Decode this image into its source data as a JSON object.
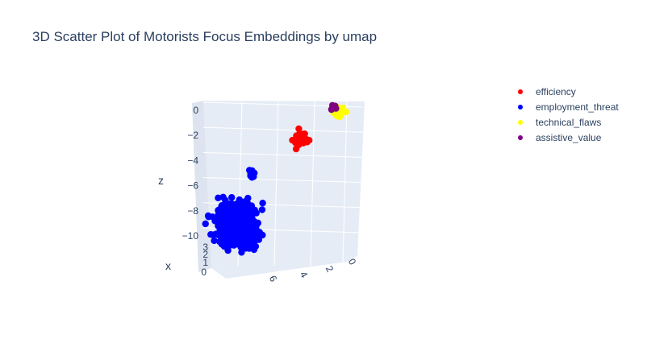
{
  "chart_data": {
    "type": "scatter",
    "title": "3D Scatter Plot of Motorists Focus Embeddings by umap",
    "axes": {
      "x": {
        "title": "x",
        "tick_labels": [
          "0",
          "1",
          "2",
          "3"
        ]
      },
      "y": {
        "title": "",
        "tick_labels": [
          "6",
          "4",
          "2",
          "0"
        ]
      },
      "z": {
        "title": "z",
        "tick_labels": [
          "0",
          "−2",
          "−4",
          "−6",
          "−8",
          "−10"
        ],
        "range": [
          -10.5,
          0.5
        ]
      }
    },
    "legend_position": "top-right",
    "series": [
      {
        "name": "efficiency",
        "color": "#ff0000",
        "clusters": [
          {
            "x": 0.5,
            "y": 2.6,
            "z": -2.2,
            "count": 22,
            "spread": 0.4
          }
        ]
      },
      {
        "name": "employment_threat",
        "color": "#0000ff",
        "clusters": [
          {
            "x": 2.0,
            "y": 6.5,
            "z": -8.6,
            "count": 650,
            "spread": 1.0
          },
          {
            "x": 2.0,
            "y": 5.6,
            "z": -4.5,
            "count": 14,
            "spread": 0.15
          }
        ]
      },
      {
        "name": "technical_flaws",
        "color": "#ffff00",
        "clusters": [
          {
            "x": 0.4,
            "y": 0.3,
            "z": 0.0,
            "count": 22,
            "spread": 0.3
          }
        ]
      },
      {
        "name": "assistive_value",
        "color": "#800080",
        "clusters": [
          {
            "x": 0.5,
            "y": 0.5,
            "z": 0.2,
            "count": 4,
            "spread": 0.3
          }
        ]
      }
    ]
  }
}
